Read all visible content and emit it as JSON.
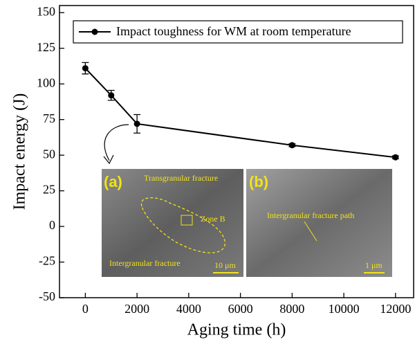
{
  "chart_data": {
    "type": "line",
    "x_label": "Aging time (h)",
    "y_label": "Impact energy (J)",
    "x": [
      0,
      1000,
      2000,
      8000,
      12000
    ],
    "series": [
      {
        "name": "Impact toughness for WM at room temperature",
        "color": "#000000",
        "values": [
          111,
          92,
          72,
          57,
          48.5
        ],
        "errors": [
          4,
          3.5,
          6.5,
          1,
          1
        ]
      }
    ],
    "xlim": [
      -1000,
      12700
    ],
    "xticks": [
      0,
      2000,
      4000,
      6000,
      8000,
      10000,
      12000
    ],
    "ylim": [
      -50,
      155
    ],
    "yticks": [
      -50,
      -25,
      0,
      25,
      50,
      75,
      100,
      125,
      150
    ],
    "legend": "top-right",
    "insets": [
      {
        "label": "(a)",
        "annotations": [
          "Transgranular fracture",
          "Zone B",
          "Intergranular fracture"
        ],
        "scale_bar": "10 μm"
      },
      {
        "label": "(b)",
        "annotations": [
          "Intergranular fracture path"
        ],
        "scale_bar": "1 μm"
      }
    ]
  }
}
